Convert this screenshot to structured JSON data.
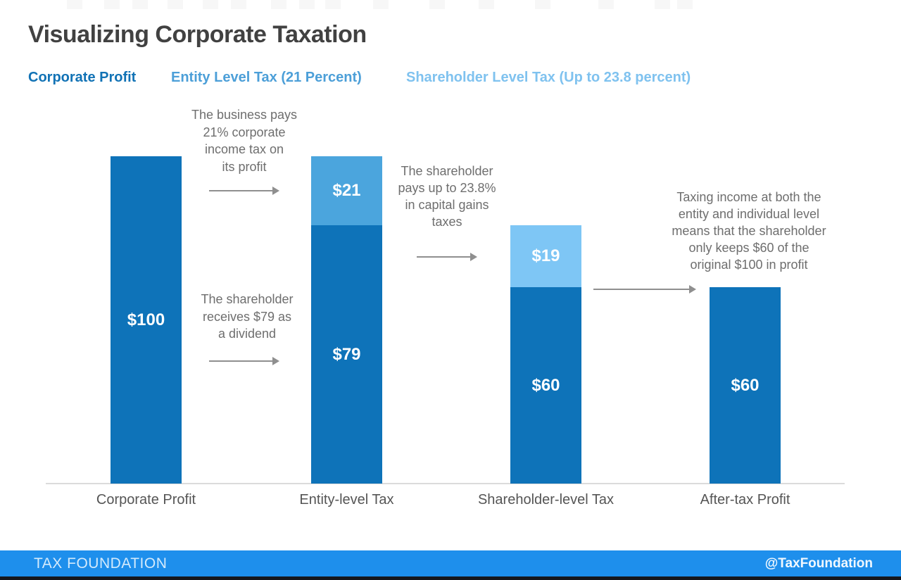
{
  "title": "Visualizing Corporate Taxation",
  "legend": {
    "items": [
      {
        "label": "Corporate Profit",
        "color": "#1172b5"
      },
      {
        "label": "Entity Level Tax (21 Percent)",
        "color": "#4c9fd8"
      },
      {
        "label": "Shareholder Level Tax (Up to 23.8 percent)",
        "color": "#7fc2ef"
      }
    ]
  },
  "chart_data": {
    "type": "bar",
    "subtype": "stacked",
    "title": "Visualizing Corporate Taxation",
    "xlabel": "",
    "ylabel": "",
    "ylim": [
      0,
      100
    ],
    "grid": false,
    "legend_position": "top",
    "categories": [
      "Corporate Profit",
      "Entity-level Tax",
      "Shareholder-level Tax",
      "After-tax Profit"
    ],
    "series": [
      {
        "name": "Corporate Profit",
        "values": [
          100,
          79,
          60,
          60
        ]
      },
      {
        "name": "Entity Level Tax (21 Percent)",
        "values": [
          0,
          21,
          0,
          0
        ]
      },
      {
        "name": "Shareholder Level Tax (Up to 23.8 percent)",
        "values": [
          0,
          0,
          19,
          0
        ]
      }
    ],
    "bars": [
      {
        "category": "Corporate Profit",
        "segments": [
          {
            "label": "$100",
            "value": 100,
            "color_key": "corporate_profit"
          }
        ]
      },
      {
        "category": "Entity-level Tax",
        "segments": [
          {
            "label": "$21",
            "value": 21,
            "color_key": "entity_tax"
          },
          {
            "label": "$79",
            "value": 79,
            "color_key": "corporate_profit"
          }
        ]
      },
      {
        "category": "Shareholder-level Tax",
        "segments": [
          {
            "label": "$19",
            "value": 19,
            "color_key": "shareholder_tax"
          },
          {
            "label": "$60",
            "value": 60,
            "color_key": "corporate_profit"
          }
        ]
      },
      {
        "category": "After-tax Profit",
        "segments": [
          {
            "label": "$60",
            "value": 60,
            "color_key": "corporate_profit"
          }
        ]
      }
    ]
  },
  "colors": {
    "corporate_profit": "#0e73b9",
    "entity_tax": "#4ba5dd",
    "shareholder_tax": "#7ec6f5"
  },
  "annotations": [
    {
      "lines": [
        "The business pays",
        "21% corporate",
        "income tax on",
        "its profit"
      ]
    },
    {
      "lines": [
        "The shareholder",
        "receives $79 as",
        "a dividend"
      ]
    },
    {
      "lines": [
        "The shareholder",
        "pays up to 23.8%",
        "in capital gains",
        "taxes"
      ]
    },
    {
      "lines": [
        "Taxing income at both the",
        "entity and individual level",
        "means that the shareholder",
        "only keeps $60 of the",
        "original $100 in profit"
      ]
    }
  ],
  "footer": {
    "left": "TAX FOUNDATION",
    "right": "@TaxFoundation"
  }
}
